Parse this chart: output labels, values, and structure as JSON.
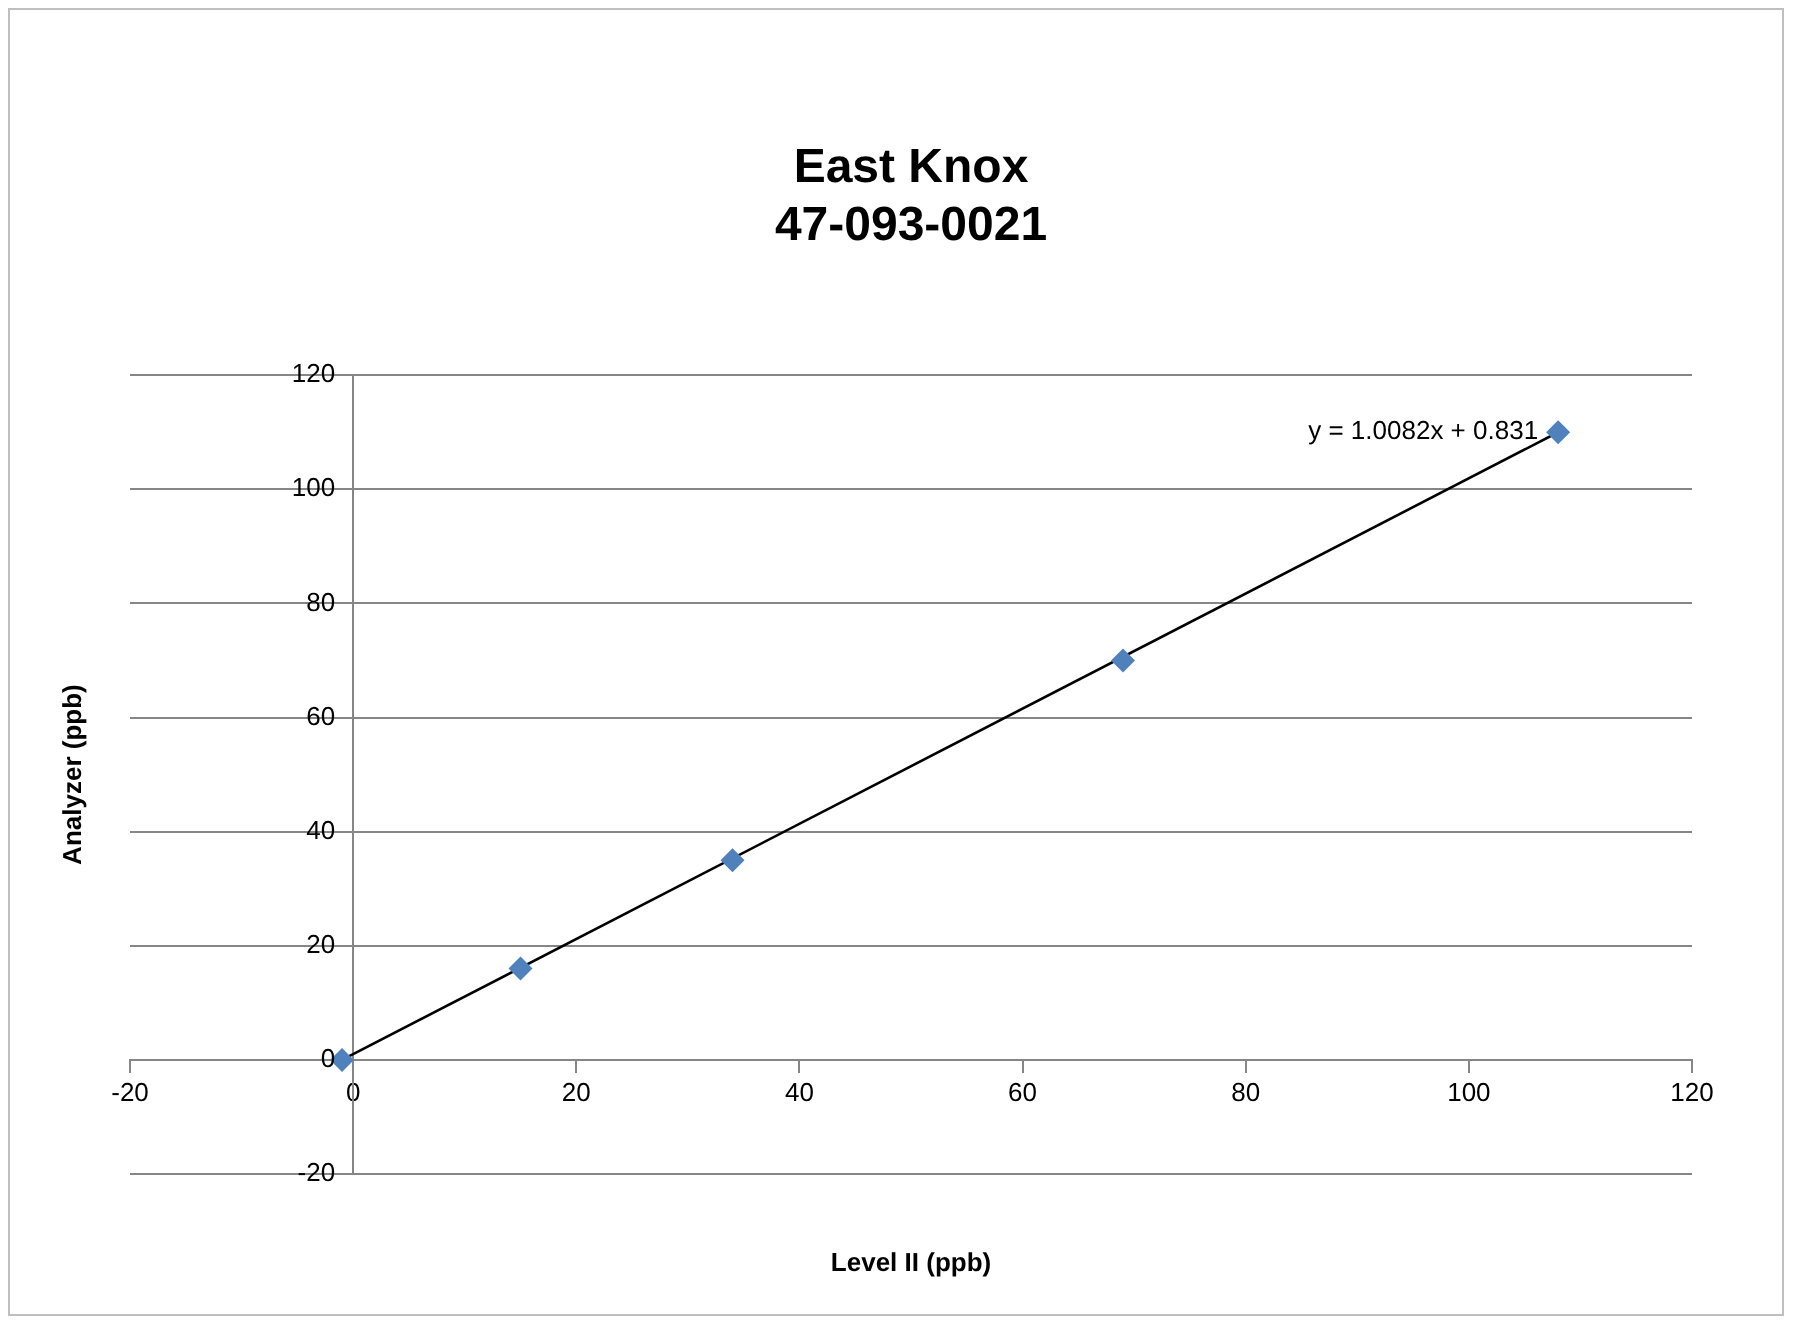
{
  "chart_data": {
    "type": "scatter",
    "title": [
      "East Knox",
      "47-093-0021"
    ],
    "xlabel": "Level II (ppb)",
    "ylabel": "Analyzer (ppb)",
    "xlim": [
      -20,
      120
    ],
    "xticks": [
      -20,
      0,
      20,
      40,
      60,
      80,
      100,
      120
    ],
    "ylim": [
      -20,
      120
    ],
    "yticks": [
      -20,
      0,
      20,
      40,
      60,
      80,
      100,
      120
    ],
    "grid": "y",
    "legend": false,
    "marker": "diamond",
    "series": [
      {
        "color": "#4f81bd",
        "x": [
          -1,
          15,
          34,
          69,
          108
        ],
        "values": [
          0,
          16,
          35,
          70,
          110
        ]
      },
      {
        "type": "line",
        "color": "#000000",
        "x": [
          -1,
          108
        ],
        "values": [
          0,
          110
        ],
        "marker": "none"
      }
    ],
    "annotations": [
      {
        "text": "y = 1.0082x + 0.831",
        "x": 108,
        "y": 110
      }
    ]
  }
}
